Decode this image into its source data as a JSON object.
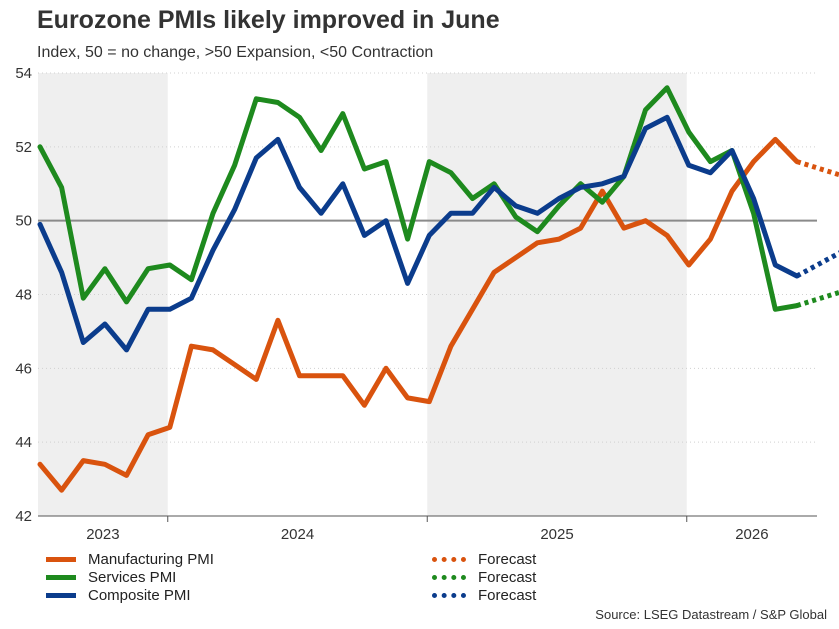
{
  "title": "Eurozone PMIs likely improved in June",
  "subtitle": "Index, 50 = no change, >50 Expansion, <50 Contraction",
  "source": "Source: LSEG Datastream / S&P Global",
  "chart_data": {
    "type": "line",
    "ylim": [
      42,
      54
    ],
    "yticks": [
      42,
      44,
      46,
      48,
      50,
      52,
      54
    ],
    "reference_line": 50,
    "x_period_labels": [
      "2023",
      "2024",
      "2025",
      "2026"
    ],
    "shaded_years": [
      "2023",
      "2025"
    ],
    "months_per_year": 12,
    "x_start_offset_months": 6,
    "grid": "horizontal dotted",
    "legend_position": "bottom",
    "series": [
      {
        "name": "Manufacturing PMI",
        "color": "#D9530E",
        "values": [
          43.4,
          42.7,
          43.5,
          43.4,
          43.1,
          44.2,
          44.4,
          46.6,
          46.5,
          46.1,
          45.7,
          47.3,
          45.8,
          45.8,
          45.8,
          45.0,
          46.0,
          45.2,
          45.1,
          46.6,
          47.6,
          48.6,
          49.0,
          49.4,
          49.5,
          49.8,
          50.8,
          49.8,
          50.0,
          49.6,
          48.8,
          49.5,
          50.8,
          51.6,
          52.2,
          51.6
        ],
        "forecast": {
          "name": "Forecast",
          "values": [
            51.6,
            51.2
          ]
        }
      },
      {
        "name": "Services PMI",
        "color": "#1E8A1E",
        "values": [
          52.0,
          50.9,
          47.9,
          48.7,
          47.8,
          48.7,
          48.8,
          48.4,
          50.2,
          51.5,
          53.3,
          53.2,
          52.8,
          51.9,
          52.9,
          51.4,
          51.6,
          49.5,
          51.6,
          51.3,
          50.6,
          51.0,
          50.1,
          49.7,
          50.4,
          51.0,
          50.5,
          51.2,
          53.0,
          53.6,
          52.4,
          51.6,
          51.9,
          50.2,
          47.6,
          47.7
        ],
        "forecast": {
          "name": "Forecast",
          "values": [
            47.7,
            48.1
          ]
        }
      },
      {
        "name": "Composite PMI",
        "color": "#0B3C8C",
        "values": [
          49.9,
          48.6,
          46.7,
          47.2,
          46.5,
          47.6,
          47.6,
          47.9,
          49.2,
          50.3,
          51.7,
          52.2,
          50.9,
          50.2,
          51.0,
          49.6,
          50.0,
          48.3,
          49.6,
          50.2,
          50.2,
          50.9,
          50.4,
          50.2,
          50.6,
          50.9,
          51.0,
          51.2,
          52.5,
          52.8,
          51.5,
          51.3,
          51.9,
          50.6,
          48.8,
          48.5
        ],
        "forecast": {
          "name": "Forecast",
          "values": [
            48.5,
            49.2
          ]
        }
      }
    ]
  },
  "legend": {
    "items": [
      {
        "label": "Manufacturing PMI",
        "color": "#D9530E",
        "style": "solid"
      },
      {
        "label": "Services PMI",
        "color": "#1E8A1E",
        "style": "solid"
      },
      {
        "label": "Composite PMI",
        "color": "#0B3C8C",
        "style": "solid"
      },
      {
        "label": "Forecast",
        "color": "#D9530E",
        "style": "dotted"
      },
      {
        "label": "Forecast",
        "color": "#1E8A1E",
        "style": "dotted"
      },
      {
        "label": "Forecast",
        "color": "#0B3C8C",
        "style": "dotted"
      }
    ]
  }
}
